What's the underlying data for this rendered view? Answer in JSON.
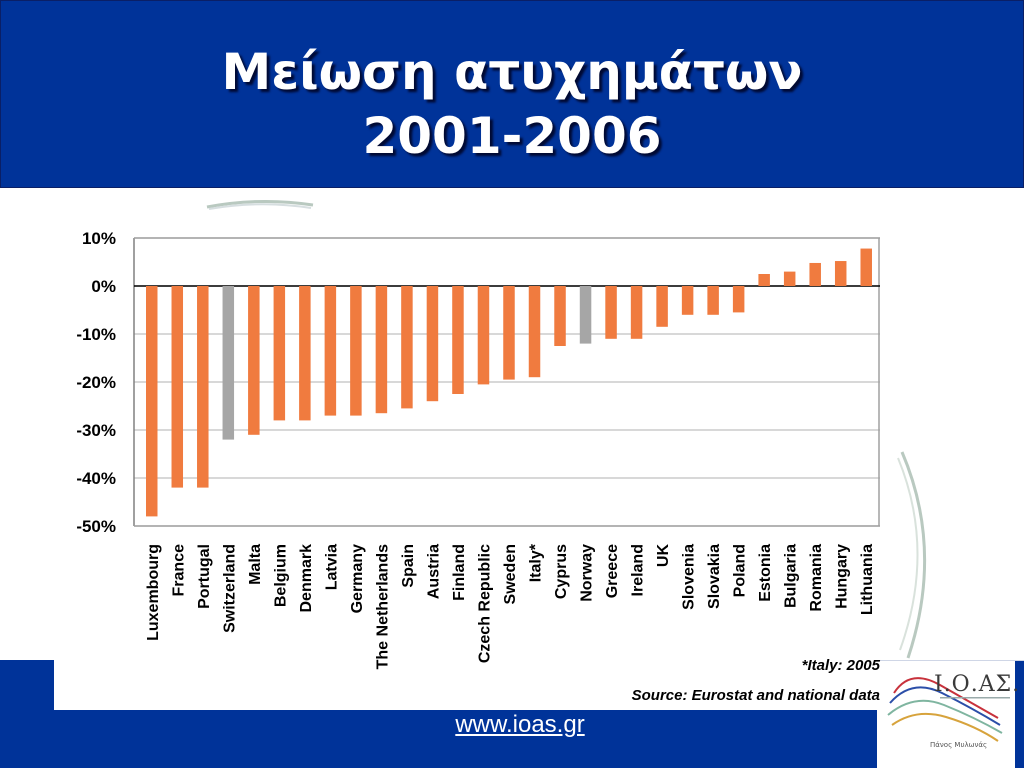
{
  "slide": {
    "title_line1": "Μείωση ατυχημάτων",
    "title_line2": "2001-2006",
    "website": "www.ioas.gr",
    "logo_text": "Ι.Ο.ΑΣ.",
    "logo_caption": "Πάνος Μυλωνάς",
    "note_italy": "*Italy: 2005",
    "source": "Source: Eurostat and national data"
  },
  "colors": {
    "band": "#003399",
    "bar_main": "#f07b3f",
    "bar_other": "#a6a6a6",
    "grid": "#c0c0c0"
  },
  "chart_data": {
    "type": "bar",
    "categories": [
      "Luxembourg",
      "France",
      "Portugal",
      "Switzerland",
      "Malta",
      "Belgium",
      "Denmark",
      "Latvia",
      "Germany",
      "The Netherlands",
      "Spain",
      "Austria",
      "Finland",
      "Czech Republic",
      "Sweden",
      "Italy*",
      "Cyprus",
      "Norway",
      "Greece",
      "Ireland",
      "UK",
      "Slovenia",
      "Slovakia",
      "Poland",
      "Estonia",
      "Bulgaria",
      "Romania",
      "Hungary",
      "Lithuania"
    ],
    "values": [
      -48,
      -42,
      -42,
      -32,
      -31,
      -28,
      -28,
      -27,
      -27,
      -26.5,
      -25.5,
      -24,
      -22.5,
      -20.5,
      -19.5,
      -19,
      -12.5,
      -12,
      -11,
      -11,
      -8.5,
      -6,
      -6,
      -5.5,
      2.5,
      3,
      4.8,
      5.2,
      7.8
    ],
    "highlight": [
      "Switzerland",
      "Norway"
    ],
    "ylim": [
      -50,
      10
    ],
    "yticks": [
      "10%",
      "0%",
      "-10%",
      "-20%",
      "-30%",
      "-40%",
      "-50%"
    ],
    "title": "",
    "xlabel": "",
    "ylabel": "",
    "grid": true
  }
}
